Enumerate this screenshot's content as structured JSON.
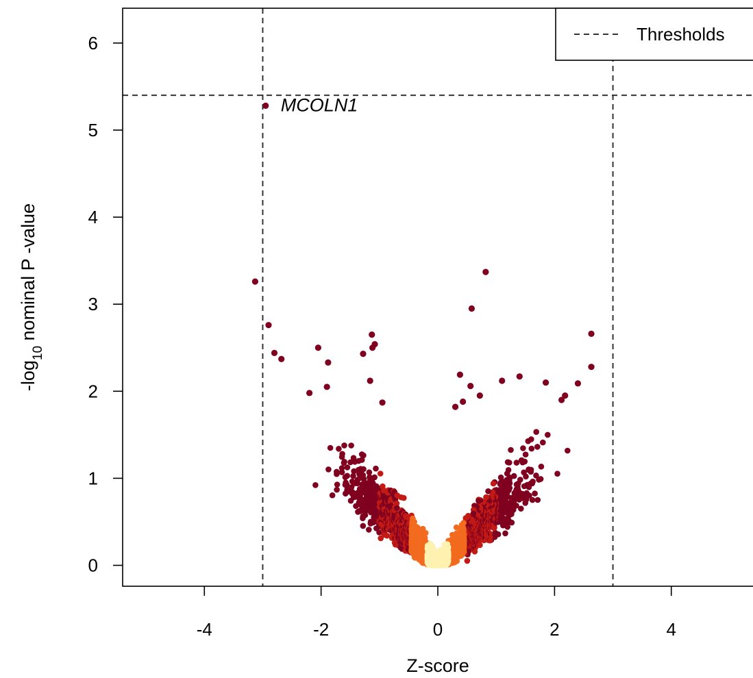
{
  "chart_data": {
    "type": "scatter",
    "xlabel": "Z-score",
    "ylabel_prefix": "-log",
    "ylabel_subscript": "10",
    "ylabel_suffix": " nominal P -value",
    "xlim": [
      -5.4,
      5.4
    ],
    "ylim": [
      -0.24,
      6.4
    ],
    "x_ticks": [
      -4,
      -2,
      0,
      2,
      4
    ],
    "y_ticks": [
      0,
      1,
      2,
      3,
      4,
      5,
      6
    ],
    "grid": false,
    "legend": {
      "position": "top-right",
      "entries": [
        {
          "label": "Thresholds",
          "style": "dashed"
        }
      ]
    },
    "thresholds": {
      "x": [
        -3,
        3
      ],
      "y": 5.4
    },
    "annotation": {
      "label": "MCOLN1",
      "x": -2.95,
      "y": 5.28
    },
    "colors": {
      "low_density": "#800020",
      "mid_density": "#c21a14",
      "high_density": "#f26b1f",
      "peak_density": "#fff2b0",
      "threshold_line": "#333333"
    },
    "highlighted_points": [
      {
        "x": -2.95,
        "y": 5.28
      },
      {
        "x": -3.13,
        "y": 3.26
      },
      {
        "x": -2.9,
        "y": 2.76
      },
      {
        "x": -2.8,
        "y": 2.44
      },
      {
        "x": -2.68,
        "y": 2.37
      },
      {
        "x": 0.82,
        "y": 3.37
      },
      {
        "x": 0.58,
        "y": 2.95
      },
      {
        "x": 2.63,
        "y": 2.66
      },
      {
        "x": 2.63,
        "y": 2.28
      },
      {
        "x": -2.05,
        "y": 2.5
      },
      {
        "x": -1.13,
        "y": 2.65
      },
      {
        "x": -1.08,
        "y": 2.54
      },
      {
        "x": -1.12,
        "y": 2.5
      },
      {
        "x": -1.28,
        "y": 2.43
      },
      {
        "x": -1.88,
        "y": 2.33
      },
      {
        "x": -1.16,
        "y": 2.12
      },
      {
        "x": -2.2,
        "y": 1.98
      },
      {
        "x": -1.9,
        "y": 2.05
      },
      {
        "x": 0.38,
        "y": 2.19
      },
      {
        "x": 0.56,
        "y": 2.06
      },
      {
        "x": 1.1,
        "y": 2.12
      },
      {
        "x": 1.4,
        "y": 2.17
      },
      {
        "x": 1.85,
        "y": 2.1
      },
      {
        "x": 2.4,
        "y": 2.09
      },
      {
        "x": 0.72,
        "y": 1.95
      },
      {
        "x": 0.3,
        "y": 1.82
      },
      {
        "x": 0.43,
        "y": 1.88
      },
      {
        "x": -0.95,
        "y": 1.87
      },
      {
        "x": 2.18,
        "y": 1.95
      },
      {
        "x": 2.12,
        "y": 1.9
      }
    ],
    "point_cloud": {
      "count": 4200,
      "v_left_slope": 0.62,
      "v_right_slope": 0.6,
      "x_sd": 0.62,
      "x_max_abs": 2.4,
      "y_max": 1.6,
      "seed": 7
    }
  }
}
